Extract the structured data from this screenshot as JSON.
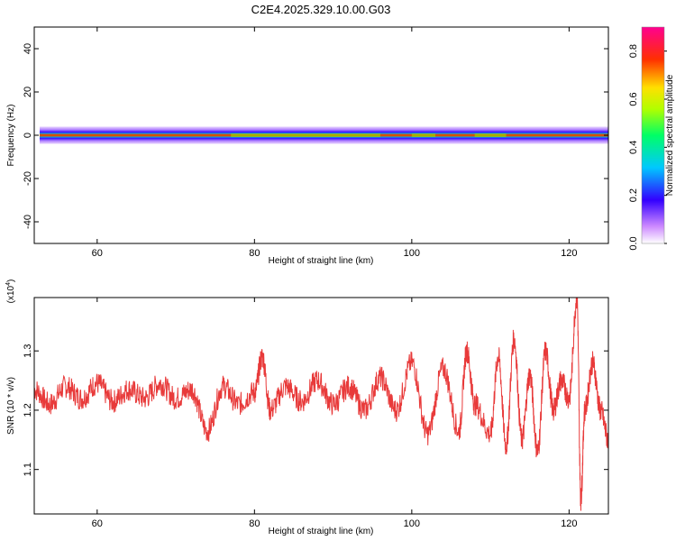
{
  "title": "C2E4.2025.329.10.00.G03",
  "chart_data": [
    {
      "type": "heatmap",
      "xlabel": "Height of straight line (km)",
      "ylabel": "Frequency (Hz)",
      "xlim": [
        52,
        125
      ],
      "ylim": [
        -50,
        50
      ],
      "x_ticks": [
        60,
        80,
        100,
        120
      ],
      "y_ticks": [
        -40,
        -20,
        0,
        20,
        40
      ],
      "band_center_hz": 0,
      "band_halfwidth_hz": 4,
      "colorbar": {
        "label": "Normalized spectral amplitude",
        "range": [
          0.0,
          0.9
        ],
        "ticks": [
          0.0,
          0.2,
          0.4,
          0.6,
          0.8
        ],
        "tick_labels": [
          "0.0",
          "0.2",
          "0.4",
          "0.6",
          "0.8"
        ]
      }
    },
    {
      "type": "line",
      "xlabel": "Height of straight line (km)",
      "ylabel": "SNR (10 * v/v)",
      "y_multiplier": "(x10",
      "y_multiplier_exp": "4",
      "y_multiplier_close": ")",
      "xlim": [
        52,
        125
      ],
      "ylim": [
        1.025,
        1.39
      ],
      "x_ticks": [
        60,
        80,
        100,
        120
      ],
      "y_ticks": [
        1.1,
        1.2,
        1.3
      ],
      "y_tick_labels": [
        "1.1",
        "1.2",
        "1.3"
      ],
      "line_color": "#e83a3a",
      "series": [
        {
          "x": [
            52,
            54,
            56,
            58,
            60,
            62,
            64,
            66,
            68,
            70,
            72,
            74,
            76,
            78,
            80,
            81,
            82,
            84,
            86,
            88,
            90,
            92,
            94,
            96,
            98,
            100,
            102,
            104,
            106,
            107,
            108,
            110,
            111,
            112,
            113,
            114,
            115,
            116,
            117,
            118,
            119,
            120,
            121,
            121.5,
            122,
            123,
            124,
            125
          ],
          "y": [
            1.235,
            1.21,
            1.24,
            1.22,
            1.245,
            1.215,
            1.235,
            1.22,
            1.245,
            1.22,
            1.235,
            1.165,
            1.24,
            1.21,
            1.23,
            1.29,
            1.2,
            1.24,
            1.215,
            1.25,
            1.21,
            1.24,
            1.2,
            1.255,
            1.2,
            1.28,
            1.16,
            1.27,
            1.165,
            1.3,
            1.21,
            1.16,
            1.29,
            1.14,
            1.32,
            1.15,
            1.26,
            1.13,
            1.3,
            1.2,
            1.25,
            1.22,
            1.39,
            1.05,
            1.2,
            1.28,
            1.2,
            1.15
          ]
        }
      ]
    }
  ]
}
